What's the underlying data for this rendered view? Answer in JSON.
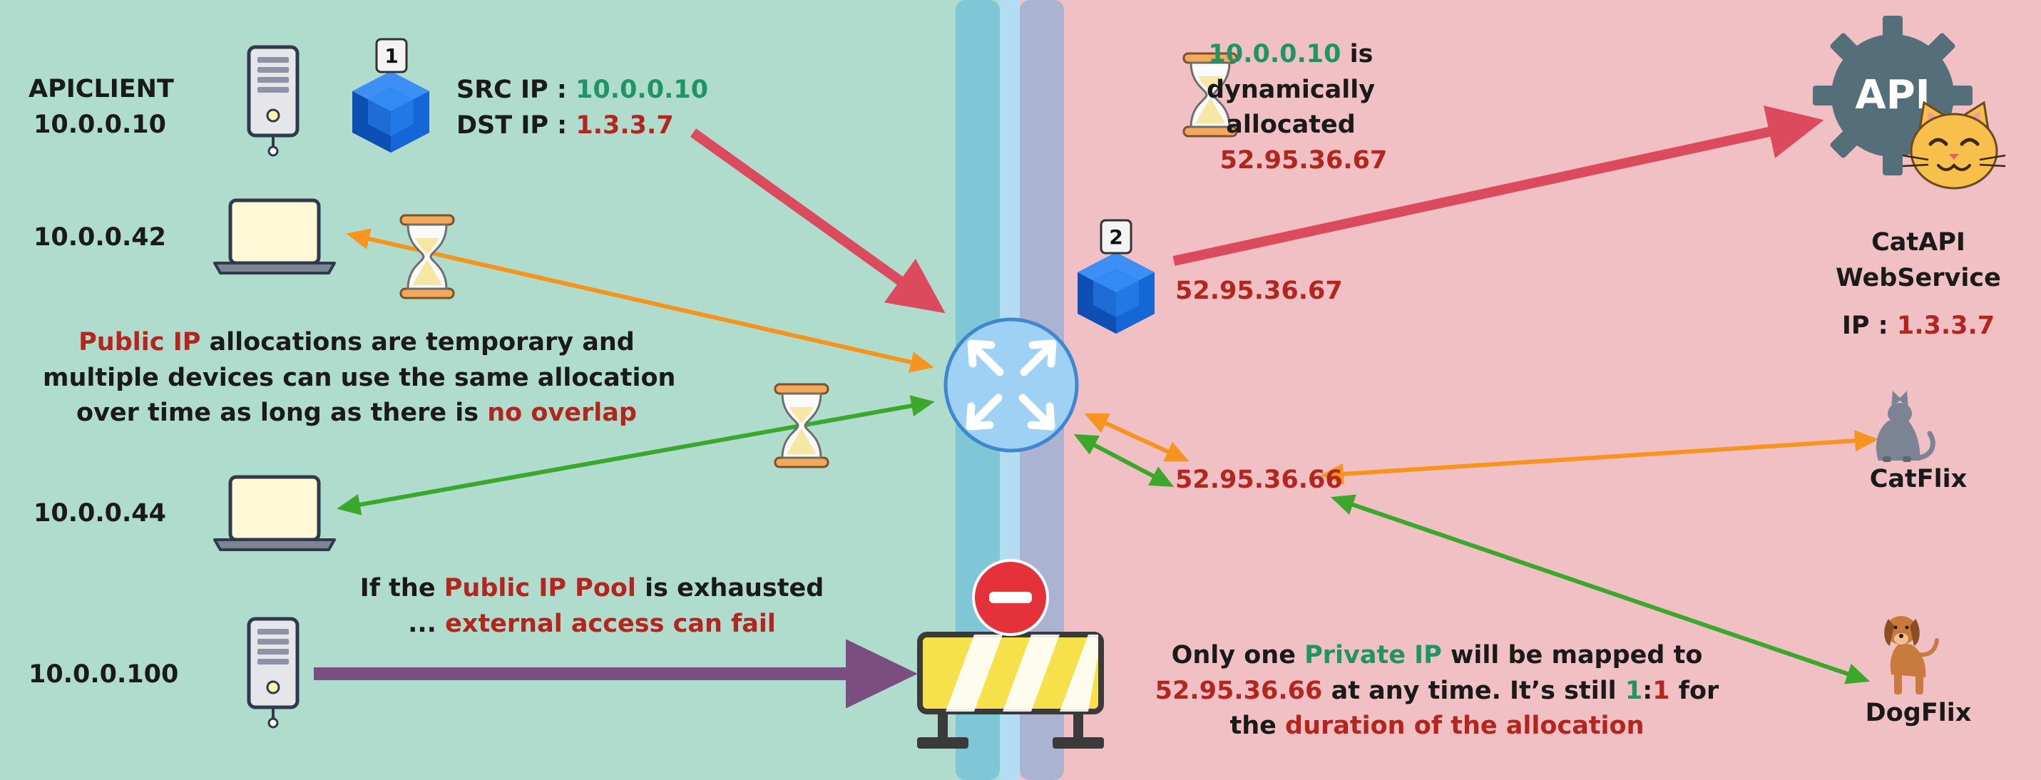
{
  "labels": {
    "apiclient_name": "APICLIENT",
    "apiclient_ip": "10.0.0.10",
    "host_42": "10.0.0.42",
    "host_44": "10.0.0.44",
    "host_100": "10.0.0.100",
    "src_prefix": "SRC IP : ",
    "src_value": "10.0.0.10",
    "dst_prefix": "DST IP : ",
    "dst_value": "1.3.3.7",
    "badge_1": "1",
    "badge_2": "2",
    "alloc_ip": "10.0.0.10",
    "alloc_l1_rest": " is",
    "alloc_l2": "dynamically",
    "alloc_l3": "allocated",
    "alloc_public": "52.95.36.67",
    "packet2_ip": "52.95.36.67",
    "shared_ip": "52.95.36.66",
    "catapi_l1": "CatAPI",
    "catapi_l2": "WebService",
    "catapi_ip_prefix": "IP : ",
    "catapi_ip_value": "1.3.3.7",
    "api_logo": "API",
    "catflix": "CatFlix",
    "dogflix": "DogFlix"
  },
  "notes": {
    "temp_a": "Public IP",
    "temp_b": " allocations are temporary and",
    "temp_c": "multiple devices can use the same allocation",
    "temp_d": "over time as long as there is ",
    "temp_e": "no overlap",
    "pool_a": "If the ",
    "pool_b": "Public IP Pool",
    "pool_c": " is exhausted",
    "pool_d": "... ",
    "pool_e": "external access can fail",
    "map_a": "Only one ",
    "map_b": "Private IP",
    "map_c": " will be mapped to",
    "map_d": "52.95.36.66",
    "map_e": " at any time. It’s still ",
    "map_f": "1",
    "map_g": ":",
    "map_h": "1",
    "map_i": " for",
    "map_j": "the ",
    "map_k": "duration of the allocation"
  },
  "colors": {
    "private_zone": "#afdccd",
    "public_zone": "#f0c0c4",
    "outbound_request": "#dc4a5d",
    "allocation_a": "#f7941d",
    "allocation_b": "#3aa82a",
    "blocked": "#7a4f80",
    "router": "#9fd1f5"
  }
}
